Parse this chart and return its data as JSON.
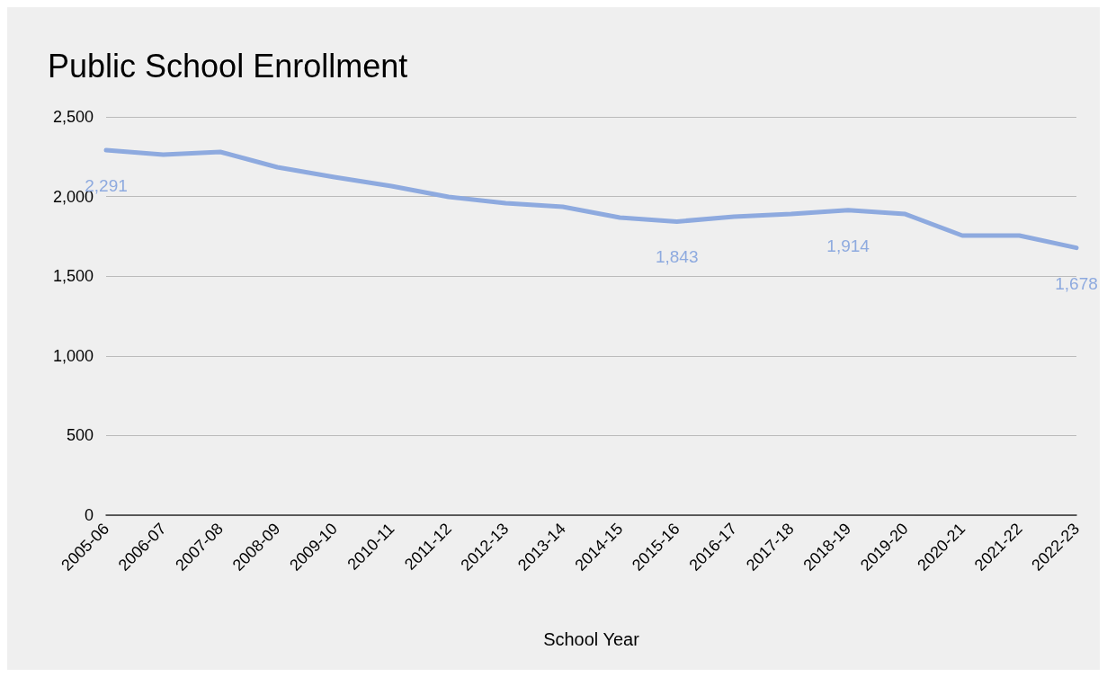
{
  "chart_data": {
    "type": "line",
    "title": "Public School Enrollment",
    "xlabel": "School Year",
    "categories": [
      "2005-06",
      "2006-07",
      "2007-08",
      "2008-09",
      "2009-10",
      "2010-11",
      "2011-12",
      "2012-13",
      "2013-14",
      "2014-15",
      "2015-16",
      "2016-17",
      "2017-18",
      "2018-19",
      "2019-20",
      "2020-21",
      "2021-22",
      "2022-23"
    ],
    "series": [
      {
        "color": "#8eaadf",
        "values": [
          2291,
          2263,
          2280,
          2184,
          2122,
          2065,
          1998,
          1958,
          1936,
          1868,
          1843,
          1874,
          1890,
          1914,
          1890,
          1755,
          1755,
          1678
        ],
        "value_labels": [
          "2,291",
          null,
          null,
          null,
          null,
          null,
          null,
          null,
          null,
          null,
          "1,843",
          null,
          null,
          "1,914",
          null,
          null,
          null,
          "1,678"
        ]
      }
    ],
    "ylim": [
      0,
      2500
    ],
    "yticks": [
      0,
      {
        "value": 500,
        "label": "500"
      },
      {
        "value": 1000,
        "label": "1,000"
      },
      {
        "value": 1500,
        "label": "1,500"
      },
      {
        "value": 2000,
        "label": "2,000"
      },
      {
        "value": 2500,
        "label": "2,500"
      }
    ],
    "grid": "y",
    "marker": "none",
    "line_style": "solid"
  }
}
